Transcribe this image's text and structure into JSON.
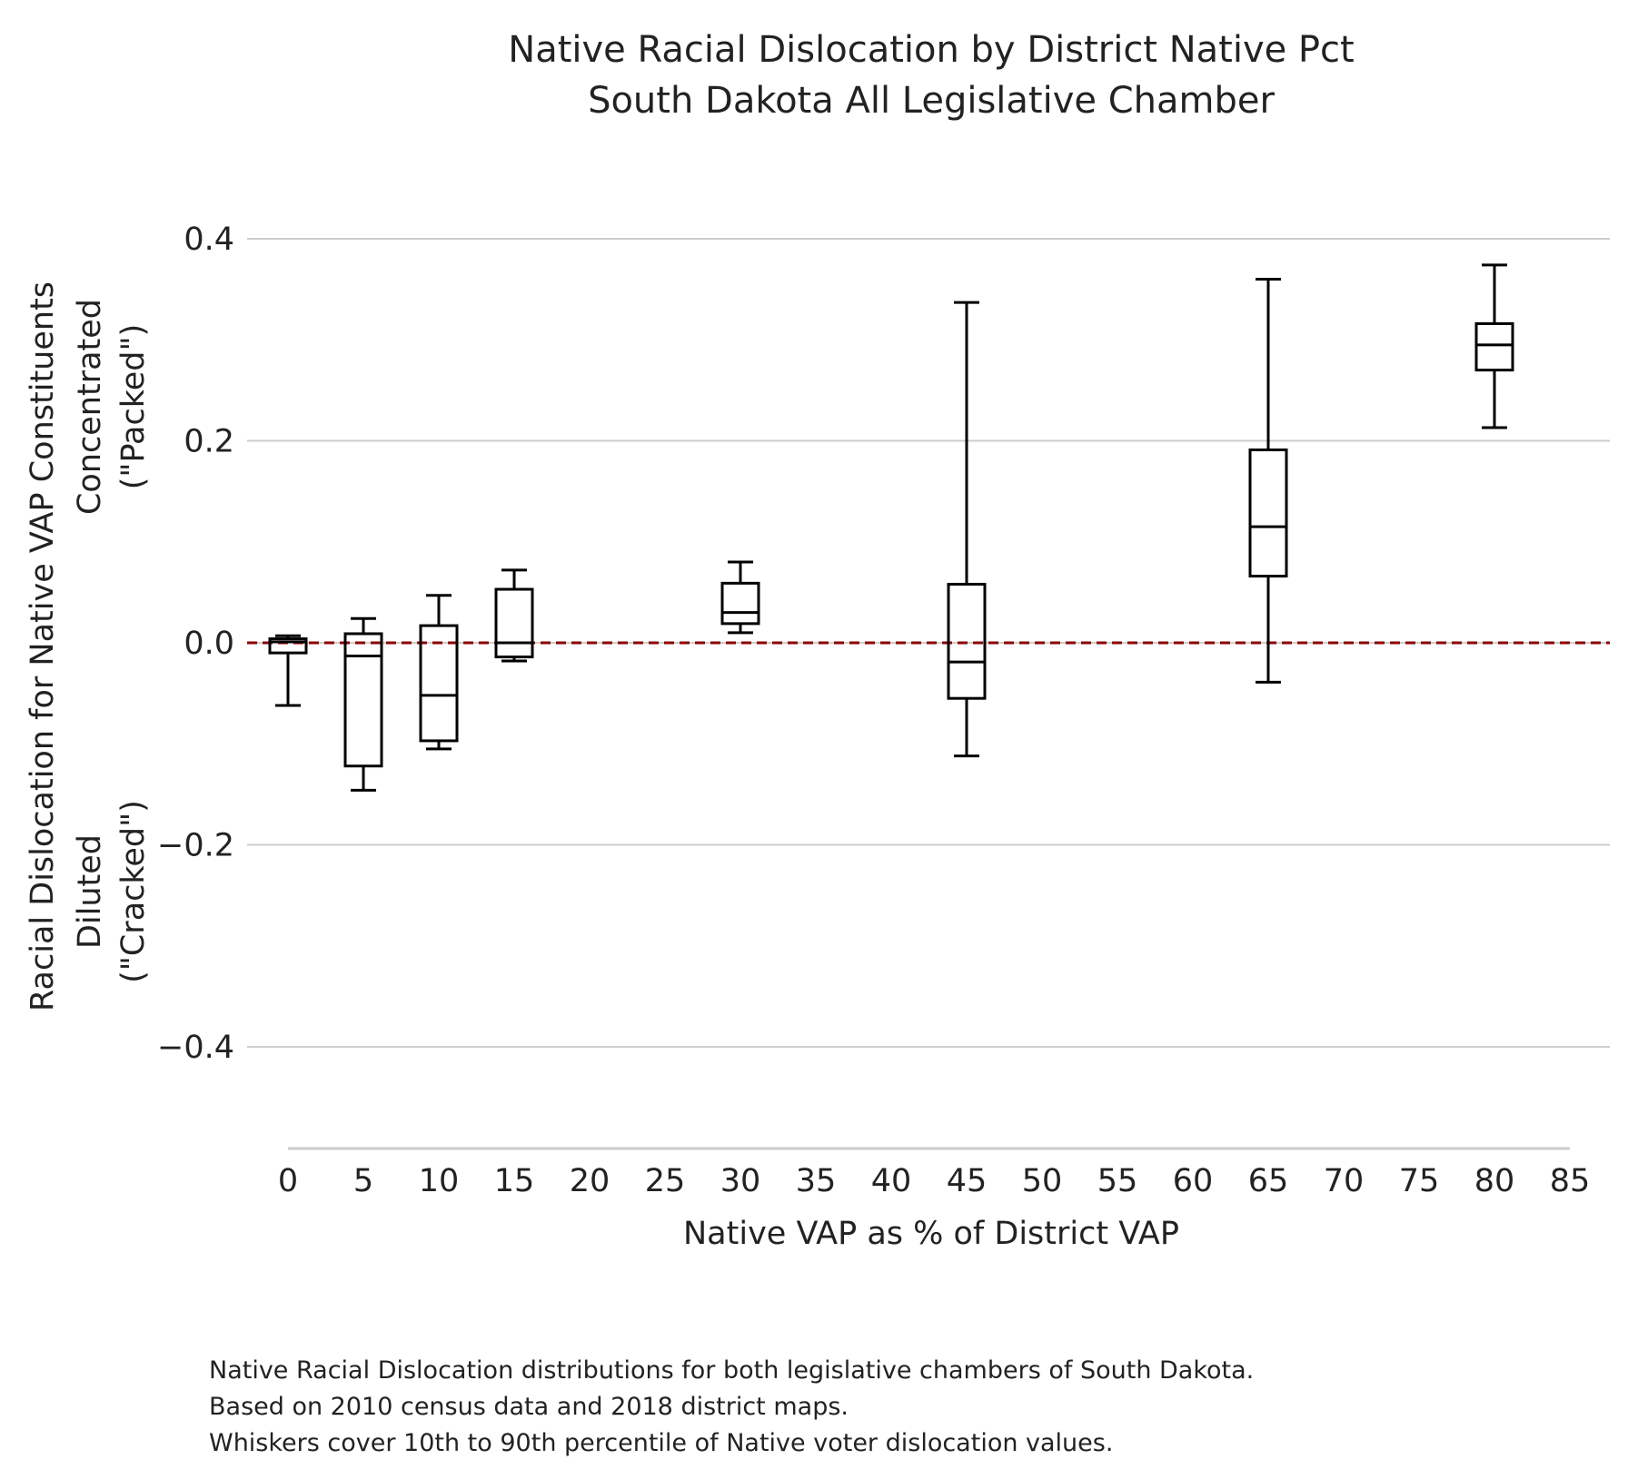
{
  "chart_data": {
    "type": "box",
    "title": "Native Racial Dislocation by District Native Pct",
    "subtitle": "South Dakota All Legislative Chamber",
    "xlabel": "Native VAP as % of District VAP",
    "ylabel": "Racial Dislocation for Native VAP Constituents",
    "ylabel_upper": [
      "Concentrated",
      "(\"Packed\")"
    ],
    "ylabel_lower": [
      "Diluted",
      "(\"Cracked\")"
    ],
    "x_ticks": [
      0,
      5,
      10,
      15,
      20,
      25,
      30,
      35,
      40,
      45,
      50,
      55,
      60,
      65,
      70,
      75,
      80,
      85
    ],
    "y_ticks": [
      "−0.4",
      "−0.2",
      "0.0",
      "0.2",
      "0.4"
    ],
    "y_tick_values": [
      -0.4,
      -0.2,
      0.0,
      0.2,
      0.4
    ],
    "xlim": [
      0,
      85
    ],
    "ylim": [
      -0.5,
      0.4
    ],
    "grid": "horizontal",
    "reference_line": {
      "y": 0.0,
      "style": "dashed",
      "color": "#8b0000"
    },
    "boxes": [
      {
        "x": 0,
        "whislo": -0.062,
        "q1": -0.01,
        "med": 0.001,
        "q3": 0.004,
        "whishi": 0.007
      },
      {
        "x": 5,
        "whislo": -0.146,
        "q1": -0.122,
        "med": -0.013,
        "q3": 0.009,
        "whishi": 0.024
      },
      {
        "x": 10,
        "whislo": -0.105,
        "q1": -0.097,
        "med": -0.052,
        "q3": 0.017,
        "whishi": 0.047
      },
      {
        "x": 15,
        "whislo": -0.018,
        "q1": -0.014,
        "med": 0.0,
        "q3": 0.053,
        "whishi": 0.072
      },
      {
        "x": 30,
        "whislo": 0.01,
        "q1": 0.019,
        "med": 0.03,
        "q3": 0.059,
        "whishi": 0.08
      },
      {
        "x": 45,
        "whislo": -0.112,
        "q1": -0.055,
        "med": -0.019,
        "q3": 0.058,
        "whishi": 0.337
      },
      {
        "x": 65,
        "whislo": -0.039,
        "q1": 0.066,
        "med": 0.115,
        "q3": 0.191,
        "whishi": 0.36
      },
      {
        "x": 80,
        "whislo": 0.213,
        "q1": 0.27,
        "med": 0.295,
        "q3": 0.316,
        "whishi": 0.374
      }
    ],
    "colors": {
      "box": "#000000",
      "grid": "#cccccc",
      "reference": "#8b0000",
      "text": "#222222"
    }
  },
  "caption": [
    "Native Racial Dislocation distributions for both legislative chambers of South Dakota.",
    "Based on 2010 census data and 2018 district maps.",
    "Whiskers cover 10th to 90th percentile of Native voter dislocation values."
  ]
}
